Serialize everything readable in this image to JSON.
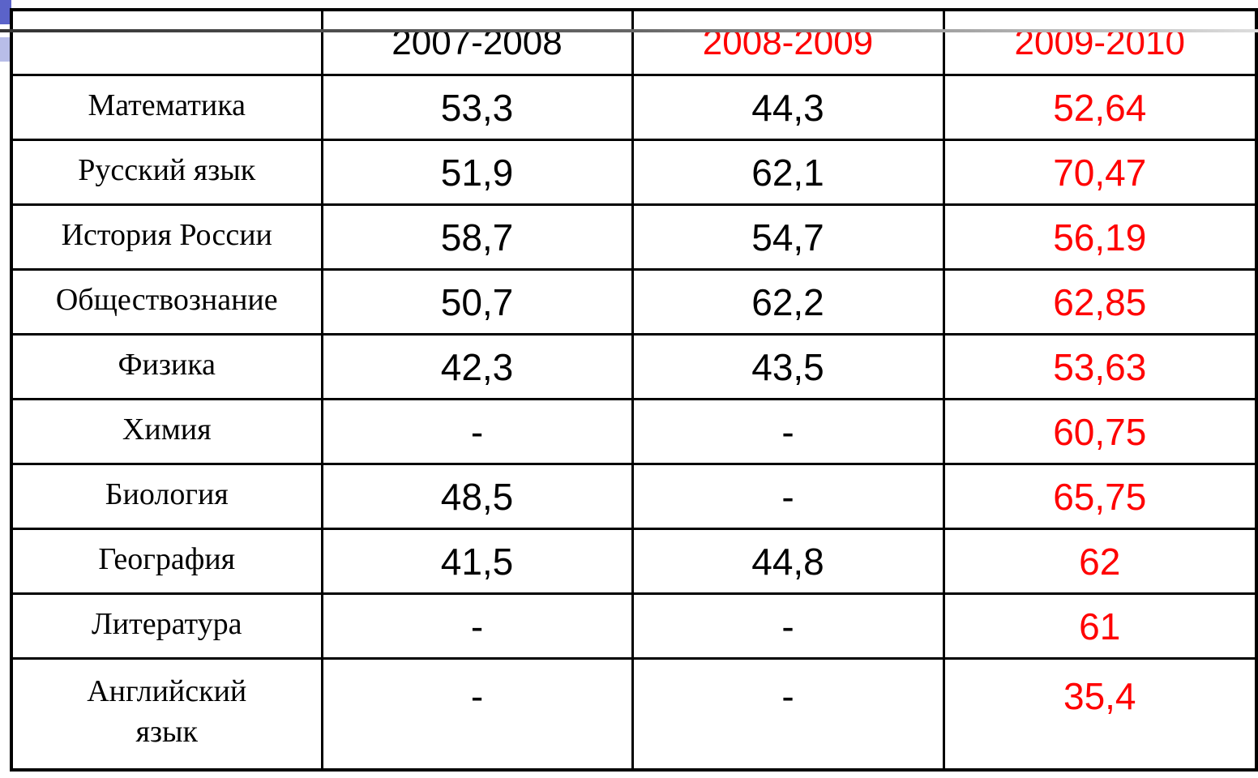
{
  "table": {
    "header": [
      "2007-2008",
      "2008-2009",
      "2009-2010"
    ],
    "rows": [
      [
        "Математика",
        "53,3",
        "44,3",
        "52,64"
      ],
      [
        "Русский язык",
        "51,9",
        "62,1",
        "70,47"
      ],
      [
        "История России",
        "58,7",
        "54,7",
        "56,19"
      ],
      [
        "Обществознание",
        "50,7",
        "62,2",
        "62,85"
      ],
      [
        "Физика",
        "42,3",
        "43,5",
        "53,63"
      ],
      [
        "Химия",
        "-",
        "-",
        "60,75"
      ],
      [
        "Биология",
        "48,5",
        "-",
        "65,75"
      ],
      [
        "География",
        "41,5",
        "44,8",
        "62"
      ],
      [
        "Литература",
        "-",
        "-",
        "61"
      ],
      [
        "Английский язык",
        "-",
        "-",
        "35,4"
      ]
    ]
  }
}
